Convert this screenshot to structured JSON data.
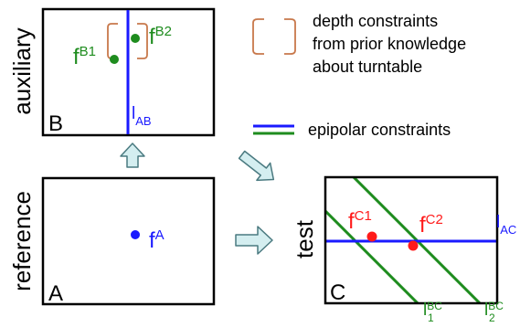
{
  "panels": {
    "auxiliary": {
      "side_label": "auxiliary",
      "corner_label": "B"
    },
    "reference": {
      "side_label": "reference",
      "corner_label": "A"
    },
    "test": {
      "side_label": "test",
      "corner_label": "C"
    }
  },
  "points": {
    "fB1": {
      "base": "f",
      "sup": "B1"
    },
    "fB2": {
      "base": "f",
      "sup": "B2"
    },
    "fA": {
      "base": "f",
      "sup": "A"
    },
    "fC1": {
      "base": "f",
      "sup": "C1"
    },
    "fC2": {
      "base": "f",
      "sup": "C2"
    }
  },
  "lines": {
    "lAB": {
      "base": "l",
      "sub": "AB"
    },
    "lAC": {
      "base": "l",
      "sub": "AC"
    },
    "lBC1": {
      "base": "l",
      "sup": "BC",
      "sub": "1"
    },
    "lBC2": {
      "base": "l",
      "sup": "BC",
      "sub": "2"
    }
  },
  "legend": {
    "depth": [
      "depth constraints",
      "from prior knowledge",
      "about turntable"
    ],
    "epipolar": "epipolar constraints"
  },
  "colors": {
    "frame": "#000000",
    "blue": "#1a1aff",
    "green": "#1e8c1e",
    "red": "#ff1a1a",
    "orange": "#c8784b",
    "arrow_fill": "#d4eef0",
    "arrow_stroke": "#4a7a80"
  }
}
